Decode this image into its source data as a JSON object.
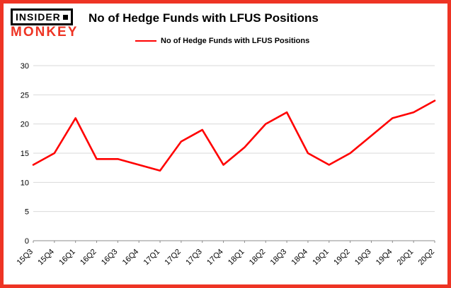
{
  "header": {
    "logo_line1": "INSIDER",
    "logo_line2": "MONKEY",
    "title": "No of Hedge Funds with LFUS Positions"
  },
  "legend": {
    "label": "No of Hedge Funds with LFUS Positions",
    "color": "#ff0000"
  },
  "colors": {
    "border": "#ee3424",
    "grid": "#d9d9d9",
    "axis": "#8c8c8c",
    "line": "#ff0000",
    "text": "#000000"
  },
  "chart_data": {
    "type": "line",
    "title": "No of Hedge Funds with LFUS Positions",
    "categories": [
      "15Q3",
      "15Q4",
      "16Q1",
      "16Q2",
      "16Q3",
      "16Q4",
      "17Q1",
      "17Q2",
      "17Q3",
      "17Q4",
      "18Q1",
      "18Q2",
      "18Q3",
      "18Q4",
      "19Q1",
      "19Q2",
      "19Q3",
      "19Q4",
      "20Q1",
      "20Q2"
    ],
    "series": [
      {
        "name": "No of Hedge Funds with LFUS Positions",
        "color": "#ff0000",
        "values": [
          13,
          15,
          21,
          14,
          14,
          13,
          12,
          17,
          19,
          13,
          16,
          20,
          22,
          15,
          13,
          15,
          18,
          21,
          22,
          24
        ]
      }
    ],
    "xlabel": "",
    "ylabel": "",
    "ylim": [
      0,
      30
    ],
    "ytick_step": 5,
    "yticks": [
      0,
      5,
      10,
      15,
      20,
      25,
      30
    ],
    "grid": true,
    "legend_position": "top-left"
  }
}
